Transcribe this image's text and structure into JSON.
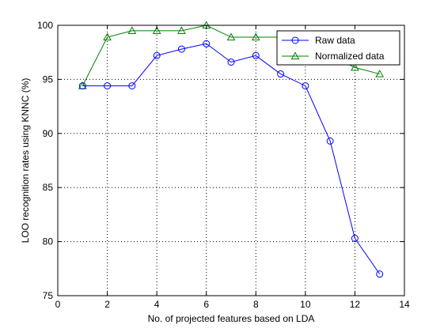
{
  "chart_data": {
    "type": "line",
    "title": "",
    "xlabel": "No. of projected features based on LDA",
    "ylabel": "LOO recognition rates using KNNC (%)",
    "xlim": [
      0,
      14
    ],
    "ylim": [
      75,
      100
    ],
    "xticks": [
      0,
      2,
      4,
      6,
      8,
      10,
      12,
      14
    ],
    "yticks": [
      75,
      80,
      85,
      90,
      95,
      100
    ],
    "grid": true,
    "legend_position": "top-right",
    "x": [
      1,
      2,
      3,
      4,
      5,
      6,
      7,
      8,
      9,
      10,
      11,
      12,
      13
    ],
    "series": [
      {
        "name": "Raw data",
        "color": "#0000ff",
        "marker": "circle",
        "values": [
          94.4,
          94.4,
          94.4,
          97.2,
          97.8,
          98.3,
          96.6,
          97.2,
          95.5,
          94.4,
          89.3,
          80.3,
          77.0
        ]
      },
      {
        "name": "Normalized data",
        "color": "#008000",
        "marker": "triangle",
        "values": [
          94.4,
          98.9,
          99.5,
          99.5,
          99.5,
          100.0,
          98.9,
          98.9,
          98.9,
          98.9,
          97.2,
          96.1,
          95.5
        ]
      }
    ]
  }
}
